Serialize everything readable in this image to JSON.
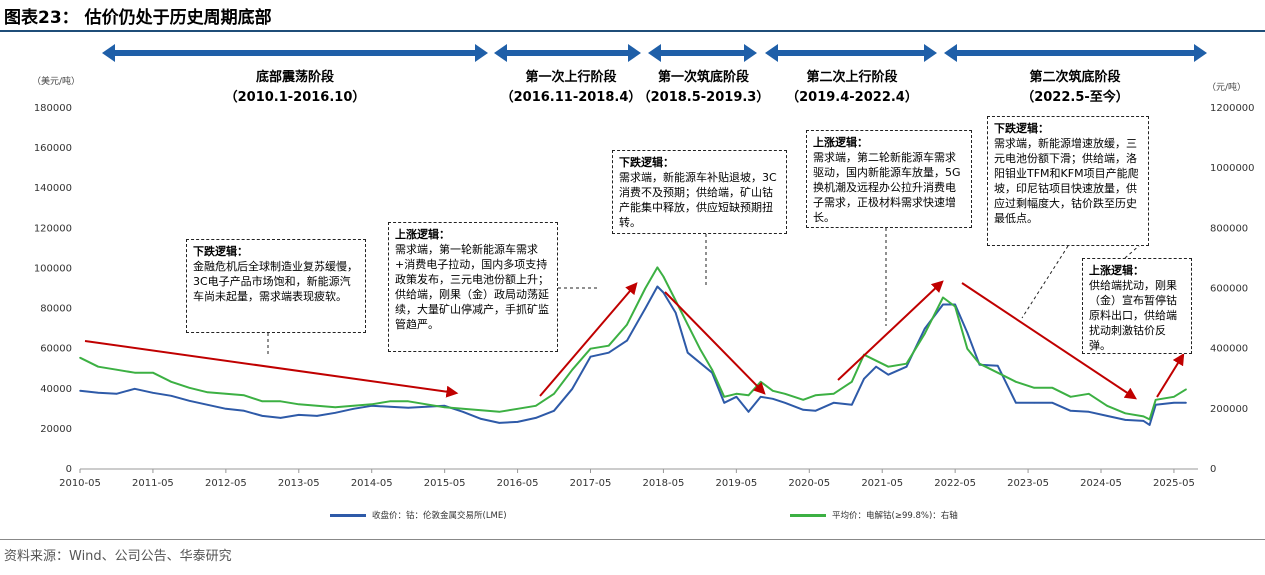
{
  "header": {
    "title": "图表23：  估价仍处于历史周期底部"
  },
  "source": "资料来源：Wind、公司公告、华泰研究",
  "phases": [
    {
      "name": "底部震荡阶段",
      "period": "（2010.1-2016.10）"
    },
    {
      "name": "第一次上行阶段",
      "period": "（2016.11-2018.4）"
    },
    {
      "name": "第一次筑底阶段",
      "period": "（2018.5-2019.3）"
    },
    {
      "name": "第二次上行阶段",
      "period": "（2019.4-2022.4）"
    },
    {
      "name": "第二次筑底阶段",
      "period": "（2022.5-至今）"
    }
  ],
  "notes": [
    {
      "title": "下跌逻辑：",
      "body": "金融危机后全球制造业复苏缓慢，3C电子产品市场饱和，新能源汽车尚未起量，需求端表现疲软。"
    },
    {
      "title": "上涨逻辑：",
      "body": "需求端，第一轮新能源车需求+消费电子拉动，国内多项支持政策发布，三元电池份额上升；供给端，刚果（金）政局动荡延续，大量矿山停减产，手抓矿监管趋严。"
    },
    {
      "title": "下跌逻辑：",
      "body": "需求端，新能源车补贴退坡，3C消费不及预期；供给端，矿山钴产能集中释放，供应短缺预期扭转。"
    },
    {
      "title": "上涨逻辑：",
      "body": "需求端，第二轮新能源车需求驱动，国内新能源车放量，5G换机潮及远程办公拉升消费电子需求，正极材料需求快速增长。"
    },
    {
      "title": "下跌逻辑：",
      "body": "需求端，新能源增速放缓，三元电池份额下滑；供给端，洛阳钼业TFM和KFM项目产能爬坡，印尼钴项目快速放量，供应过剩幅度大，钴价跌至历史最低点。"
    },
    {
      "title": "上涨逻辑：",
      "body": "供给端扰动，刚果（金）宣布暂停钴原料出口，供给端扰动刺激钴价反弹。"
    }
  ],
  "axis": {
    "left_unit": "（美元/吨）",
    "right_unit": "（元/吨）"
  },
  "chart_data": {
    "type": "line",
    "title": "",
    "x_ticks": [
      "2010-05",
      "2011-05",
      "2012-05",
      "2013-05",
      "2014-05",
      "2015-05",
      "2016-05",
      "2017-05",
      "2018-05",
      "2019-05",
      "2020-05",
      "2021-05",
      "2022-05",
      "2023-05",
      "2024-05",
      "2025-05"
    ],
    "left_axis": {
      "range": [
        0,
        180000
      ],
      "ticks": [
        "0",
        "20000",
        "40000",
        "60000",
        "80000",
        "100000",
        "120000",
        "140000",
        "160000",
        "180000"
      ]
    },
    "right_axis": {
      "range": [
        0,
        1200000
      ],
      "ticks": [
        "0",
        "200000",
        "400000",
        "600000",
        "800000",
        "1000000",
        "1200000"
      ]
    },
    "grid": false,
    "legend_position": "bottom",
    "series": [
      {
        "name": "收盘价：钴：伦敦金属交易所(LME)",
        "axis": "left",
        "color": "#2e5aa8",
        "points": [
          [
            "2010-05",
            39000
          ],
          [
            "2010-08",
            38000
          ],
          [
            "2010-11",
            37500
          ],
          [
            "2011-02",
            40000
          ],
          [
            "2011-05",
            38000
          ],
          [
            "2011-08",
            36500
          ],
          [
            "2011-11",
            34000
          ],
          [
            "2012-02",
            32000
          ],
          [
            "2012-05",
            30000
          ],
          [
            "2012-08",
            29000
          ],
          [
            "2012-11",
            26500
          ],
          [
            "2013-02",
            25500
          ],
          [
            "2013-05",
            27000
          ],
          [
            "2013-08",
            26500
          ],
          [
            "2013-11",
            28000
          ],
          [
            "2014-02",
            30000
          ],
          [
            "2014-05",
            31500
          ],
          [
            "2014-08",
            31000
          ],
          [
            "2014-11",
            30500
          ],
          [
            "2015-02",
            31000
          ],
          [
            "2015-05",
            31500
          ],
          [
            "2015-08",
            28500
          ],
          [
            "2015-11",
            25000
          ],
          [
            "2016-02",
            23000
          ],
          [
            "2016-05",
            23500
          ],
          [
            "2016-08",
            25500
          ],
          [
            "2016-11",
            29000
          ],
          [
            "2017-02",
            40000
          ],
          [
            "2017-05",
            56000
          ],
          [
            "2017-08",
            58000
          ],
          [
            "2017-11",
            64000
          ],
          [
            "2018-02",
            80000
          ],
          [
            "2018-04",
            91000
          ],
          [
            "2018-05",
            88000
          ],
          [
            "2018-07",
            78000
          ],
          [
            "2018-09",
            58000
          ],
          [
            "2018-11",
            53000
          ],
          [
            "2019-01",
            48000
          ],
          [
            "2019-03",
            33000
          ],
          [
            "2019-05",
            36000
          ],
          [
            "2019-07",
            28500
          ],
          [
            "2019-09",
            36000
          ],
          [
            "2019-11",
            35000
          ],
          [
            "2020-01",
            33000
          ],
          [
            "2020-04",
            29500
          ],
          [
            "2020-06",
            29000
          ],
          [
            "2020-09",
            33000
          ],
          [
            "2020-12",
            32000
          ],
          [
            "2021-02",
            45000
          ],
          [
            "2021-04",
            51000
          ],
          [
            "2021-06",
            47000
          ],
          [
            "2021-09",
            51000
          ],
          [
            "2021-12",
            70000
          ],
          [
            "2022-03",
            82000
          ],
          [
            "2022-05",
            82000
          ],
          [
            "2022-07",
            68000
          ],
          [
            "2022-09",
            52000
          ],
          [
            "2022-12",
            51500
          ],
          [
            "2023-03",
            33000
          ],
          [
            "2023-06",
            33000
          ],
          [
            "2023-09",
            33000
          ],
          [
            "2023-12",
            29000
          ],
          [
            "2024-03",
            28500
          ],
          [
            "2024-06",
            26500
          ],
          [
            "2024-09",
            24500
          ],
          [
            "2024-12",
            24000
          ],
          [
            "2025-01",
            22000
          ],
          [
            "2025-02",
            32000
          ],
          [
            "2025-05",
            33000
          ],
          [
            "2025-07",
            33000
          ]
        ]
      },
      {
        "name": "平均价：电解钴(≥99.8%)：右轴",
        "axis": "right",
        "color": "#3cb043",
        "points": [
          [
            "2010-05",
            370000
          ],
          [
            "2010-08",
            340000
          ],
          [
            "2010-11",
            330000
          ],
          [
            "2011-02",
            320000
          ],
          [
            "2011-05",
            320000
          ],
          [
            "2011-08",
            290000
          ],
          [
            "2011-11",
            270000
          ],
          [
            "2012-02",
            255000
          ],
          [
            "2012-05",
            250000
          ],
          [
            "2012-08",
            245000
          ],
          [
            "2012-11",
            225000
          ],
          [
            "2013-02",
            225000
          ],
          [
            "2013-05",
            215000
          ],
          [
            "2013-08",
            210000
          ],
          [
            "2013-11",
            205000
          ],
          [
            "2014-02",
            210000
          ],
          [
            "2014-05",
            215000
          ],
          [
            "2014-08",
            225000
          ],
          [
            "2014-11",
            225000
          ],
          [
            "2015-02",
            215000
          ],
          [
            "2015-05",
            205000
          ],
          [
            "2015-08",
            200000
          ],
          [
            "2015-11",
            195000
          ],
          [
            "2016-02",
            190000
          ],
          [
            "2016-05",
            200000
          ],
          [
            "2016-08",
            210000
          ],
          [
            "2016-11",
            250000
          ],
          [
            "2017-02",
            330000
          ],
          [
            "2017-05",
            400000
          ],
          [
            "2017-08",
            410000
          ],
          [
            "2017-11",
            480000
          ],
          [
            "2018-02",
            600000
          ],
          [
            "2018-04",
            670000
          ],
          [
            "2018-05",
            640000
          ],
          [
            "2018-07",
            560000
          ],
          [
            "2018-09",
            480000
          ],
          [
            "2018-11",
            400000
          ],
          [
            "2019-01",
            330000
          ],
          [
            "2019-03",
            240000
          ],
          [
            "2019-05",
            250000
          ],
          [
            "2019-07",
            245000
          ],
          [
            "2019-09",
            290000
          ],
          [
            "2019-11",
            260000
          ],
          [
            "2020-01",
            250000
          ],
          [
            "2020-04",
            230000
          ],
          [
            "2020-06",
            245000
          ],
          [
            "2020-09",
            250000
          ],
          [
            "2020-12",
            290000
          ],
          [
            "2021-02",
            380000
          ],
          [
            "2021-04",
            360000
          ],
          [
            "2021-06",
            340000
          ],
          [
            "2021-09",
            350000
          ],
          [
            "2021-12",
            450000
          ],
          [
            "2022-03",
            570000
          ],
          [
            "2022-05",
            540000
          ],
          [
            "2022-07",
            400000
          ],
          [
            "2022-09",
            350000
          ],
          [
            "2022-12",
            320000
          ],
          [
            "2023-03",
            290000
          ],
          [
            "2023-06",
            270000
          ],
          [
            "2023-09",
            270000
          ],
          [
            "2023-12",
            240000
          ],
          [
            "2024-03",
            250000
          ],
          [
            "2024-06",
            210000
          ],
          [
            "2024-09",
            185000
          ],
          [
            "2024-12",
            175000
          ],
          [
            "2025-01",
            165000
          ],
          [
            "2025-02",
            230000
          ],
          [
            "2025-05",
            240000
          ],
          [
            "2025-07",
            265000
          ]
        ]
      }
    ]
  }
}
